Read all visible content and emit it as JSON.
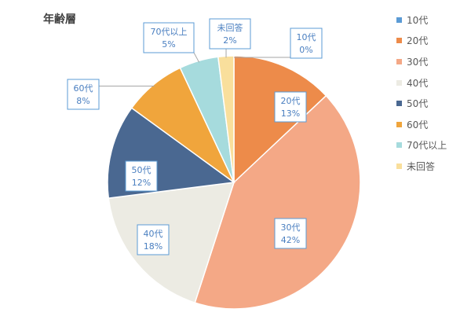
{
  "chart_data": {
    "type": "pie",
    "title": "年齢層",
    "slices": [
      {
        "name": "10代",
        "value": 0,
        "label": "0%",
        "color": "#5b9bd5"
      },
      {
        "name": "20代",
        "value": 13,
        "label": "13%",
        "color": "#ed8b4a"
      },
      {
        "name": "30代",
        "value": 42,
        "label": "42%",
        "color": "#f4a886"
      },
      {
        "name": "40代",
        "value": 18,
        "label": "18%",
        "color": "#ecebe3"
      },
      {
        "name": "50代",
        "value": 12,
        "label": "12%",
        "color": "#4a6891"
      },
      {
        "name": "60代",
        "value": 8,
        "label": "8%",
        "color": "#f0a53c"
      },
      {
        "name": "70代以上",
        "value": 5,
        "label": "5%",
        "color": "#a6dbdd"
      },
      {
        "name": "未回答",
        "value": 2,
        "label": "2%",
        "color": "#f9df9c"
      }
    ],
    "legend_position": "right",
    "label_color": "#4a7fc0"
  }
}
